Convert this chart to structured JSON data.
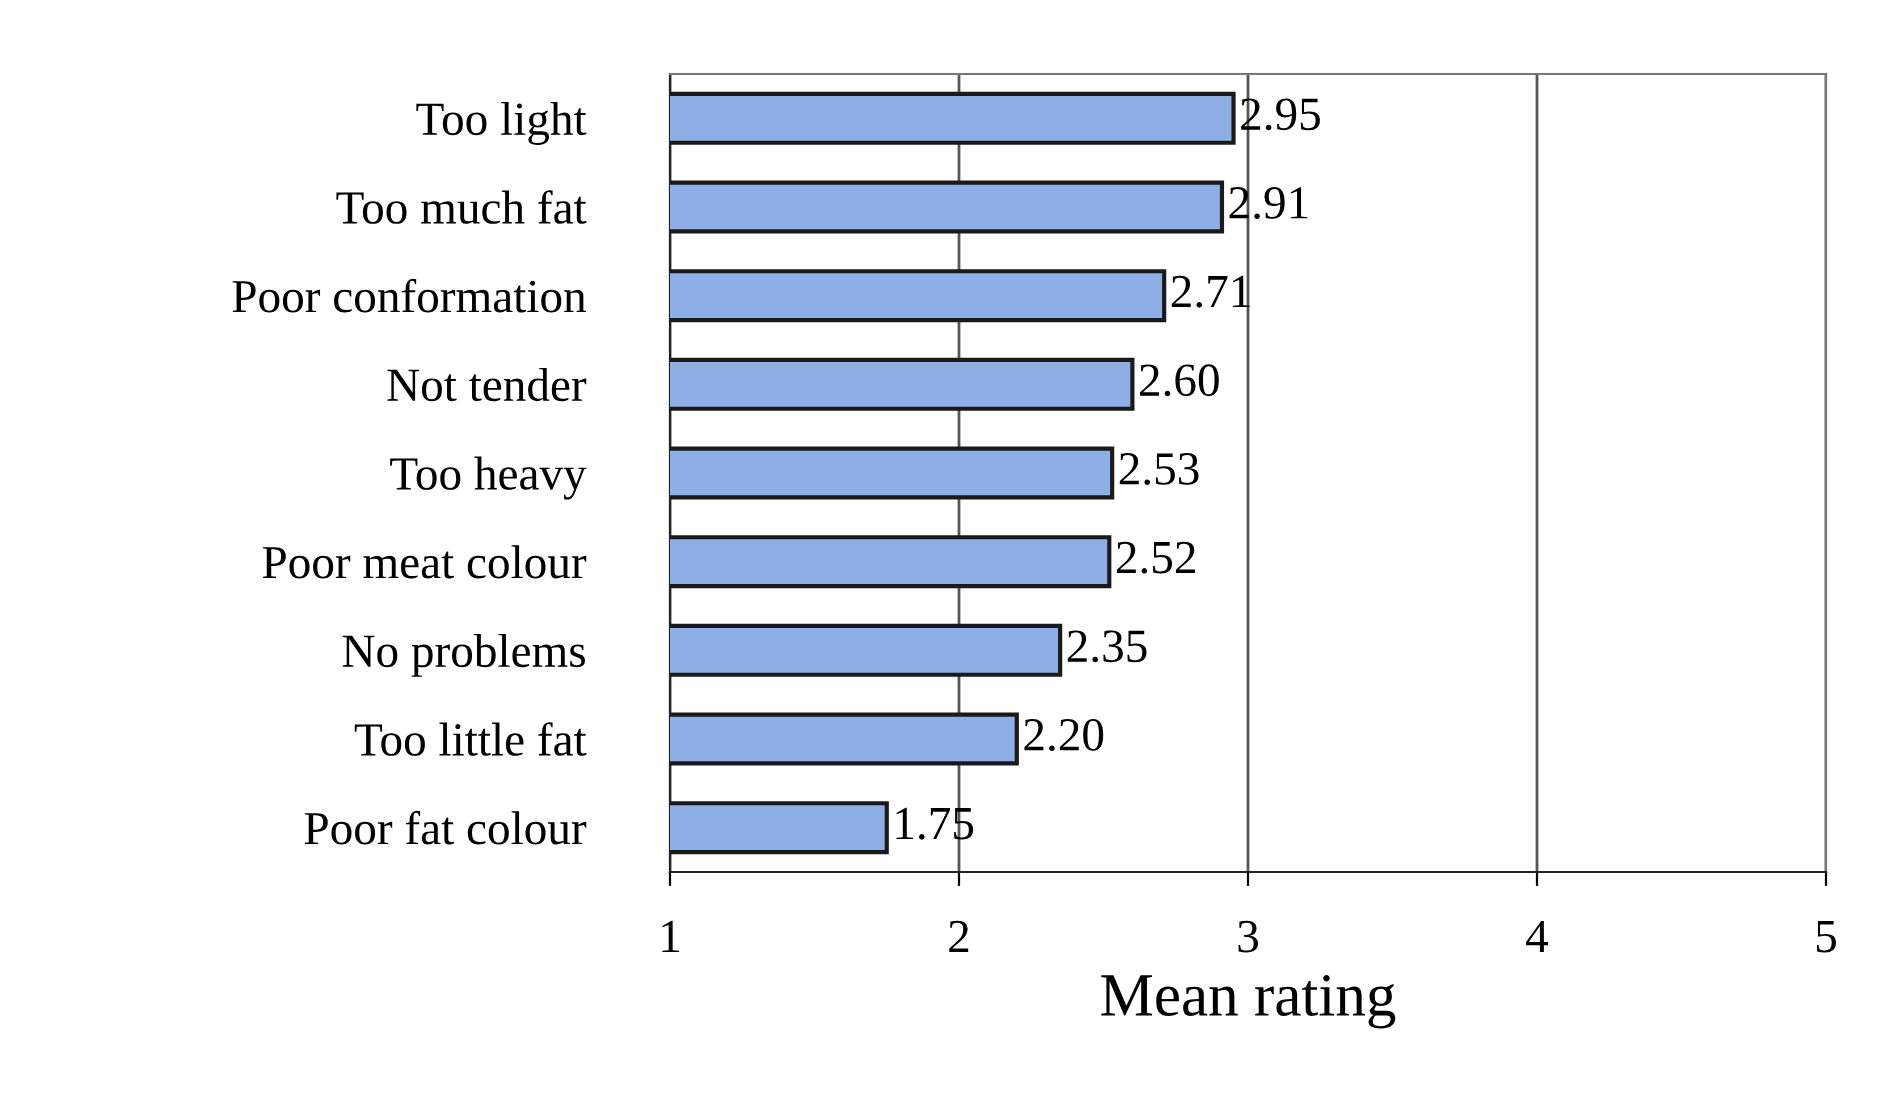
{
  "chart_data": {
    "type": "bar",
    "orientation": "horizontal",
    "xlabel": "Mean rating",
    "categories": [
      "Too light",
      "Too much fat",
      "Poor conformation",
      "Not tender",
      "Too heavy",
      "Poor meat colour",
      "No problems",
      "Too little fat",
      "Poor fat colour"
    ],
    "values": [
      2.95,
      2.91,
      2.71,
      2.6,
      2.53,
      2.52,
      2.35,
      2.2,
      1.75
    ],
    "value_labels": [
      "2.95",
      "2.91",
      "2.71",
      "2.60",
      "2.53",
      "2.52",
      "2.35",
      "2.20",
      "1.75"
    ],
    "color": "#8eaee6",
    "xlim": [
      1,
      5
    ],
    "xticks": [
      1,
      2,
      3,
      4,
      5
    ],
    "grid": "x",
    "legend": false
  }
}
